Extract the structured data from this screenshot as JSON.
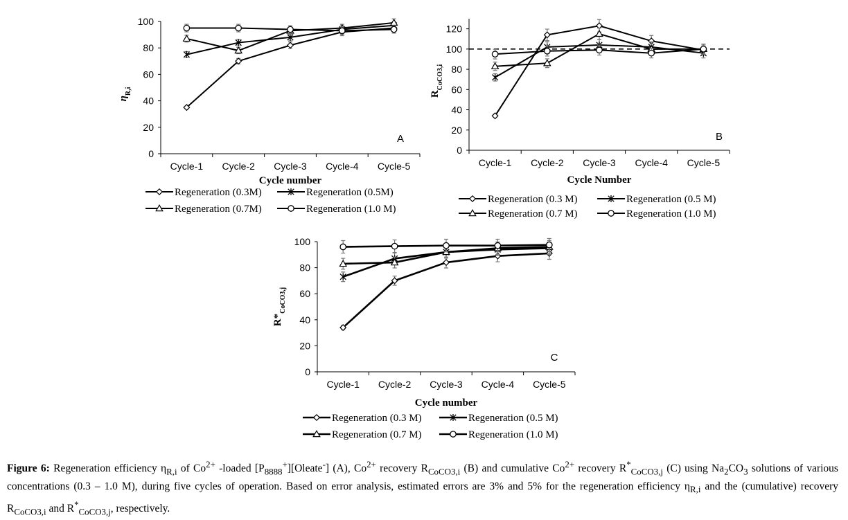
{
  "chart_data": [
    {
      "id": "A",
      "type": "line",
      "panel_label": "A",
      "title": "",
      "xlabel": "Cycle number",
      "ylabel": "η_R,i",
      "ylabel_main": "η",
      "ylabel_sub": "R,i",
      "categories": [
        "Cycle-1",
        "Cycle-2",
        "Cycle-3",
        "Cycle-4",
        "Cycle-5"
      ],
      "ylim": [
        0,
        100
      ],
      "yticks": [
        0,
        20,
        40,
        60,
        80,
        100
      ],
      "reference_line": null,
      "legend": [
        "Regeneration (0.3M)",
        "Regeneration (0.5M)",
        "Regeneration (0.7M)",
        "Regeneration (1.0 M)"
      ],
      "series": [
        {
          "name": "Regeneration (0.3M)",
          "marker": "diamond",
          "values": [
            35,
            70,
            82,
            92,
            95
          ]
        },
        {
          "name": "Regeneration (0.5M)",
          "marker": "star",
          "values": [
            75,
            84,
            88,
            94,
            97
          ]
        },
        {
          "name": "Regeneration (0.7M)",
          "marker": "triangle",
          "values": [
            87,
            78,
            93,
            95,
            99
          ]
        },
        {
          "name": "Regeneration (1.0 M)",
          "marker": "circle",
          "values": [
            95,
            95,
            94,
            93,
            94
          ]
        }
      ]
    },
    {
      "id": "B",
      "type": "line",
      "panel_label": "B",
      "title": "",
      "xlabel": "Cycle Number",
      "ylabel": "R_CoCO3,i",
      "ylabel_main": "R",
      "ylabel_sub": "CoCO3,i",
      "categories": [
        "Cycle-1",
        "Cycle-2",
        "Cycle-3",
        "Cycle-4",
        "Cycle-5"
      ],
      "ylim": [
        0,
        130
      ],
      "yticks": [
        0,
        20,
        40,
        60,
        80,
        100,
        120
      ],
      "reference_line": 100,
      "legend": [
        "Regeneration (0.3 M)",
        "Regeneration (0.5 M)",
        "Regeneration (0.7 M)",
        "Regeneration (1.0 M)"
      ],
      "series": [
        {
          "name": "Regeneration (0.3 M)",
          "marker": "diamond",
          "values": [
            34,
            114,
            123,
            108,
            99
          ]
        },
        {
          "name": "Regeneration (0.5 M)",
          "marker": "star",
          "values": [
            72,
            102,
            104,
            102,
            96
          ]
        },
        {
          "name": "Regeneration (0.7 M)",
          "marker": "triangle",
          "values": [
            83,
            86,
            115,
            100,
            100
          ]
        },
        {
          "name": "Regeneration (1.0 M)",
          "marker": "circle",
          "values": [
            95,
            98,
            99,
            96,
            100
          ]
        }
      ]
    },
    {
      "id": "C",
      "type": "line",
      "panel_label": "C",
      "title": "",
      "xlabel": "Cycle number",
      "ylabel": "R*_CoCO3,j",
      "ylabel_main": "R*",
      "ylabel_sub": "CoCO3,j",
      "categories": [
        "Cycle-1",
        "Cycle-2",
        "Cycle-3",
        "Cycle-4",
        "Cycle-5"
      ],
      "ylim": [
        0,
        100
      ],
      "yticks": [
        0,
        20,
        40,
        60,
        80,
        100
      ],
      "reference_line": null,
      "legend": [
        "Regeneration (0.3 M)",
        "Regeneration (0.5 M)",
        "Regeneration (0.7 M)",
        "Regeneration (1.0 M)"
      ],
      "series": [
        {
          "name": "Regeneration (0.3 M)",
          "marker": "diamond",
          "values": [
            34,
            70,
            84,
            89,
            91
          ]
        },
        {
          "name": "Regeneration (0.5 M)",
          "marker": "star",
          "values": [
            73,
            87,
            92,
            94,
            95
          ]
        },
        {
          "name": "Regeneration (0.7 M)",
          "marker": "triangle",
          "values": [
            83,
            84,
            92,
            95,
            96
          ]
        },
        {
          "name": "Regeneration (1.0 M)",
          "marker": "circle",
          "values": [
            96,
            96.5,
            97,
            97,
            97.5
          ]
        }
      ]
    }
  ],
  "caption": {
    "label": "Figure 6:",
    "t1": " Regeneration efficiency η",
    "s1": "R,i",
    "t2": " of Co",
    "p1": "2+",
    "t3": " -loaded [P",
    "s2": "8888",
    "p2": "+",
    "t4": "][Oleate",
    "p3": "-",
    "t5": "] (A), Co",
    "p4": "2+",
    "t6": " recovery R",
    "s3": "CoCO3,i",
    "t7": " (B) and cumulative Co",
    "p5": "2+",
    "t8": " recovery R",
    "p6": "*",
    "s4": "CoCO3,j",
    "t9": " (C) using Na",
    "s5": "2",
    "t10": "CO",
    "s6": "3",
    "t11": " solutions of various concentrations (0.3 – 1.0 M), during five cycles of operation. Based on error analysis, estimated errors are 3% and 5% for the regeneration efficiency η",
    "s7": "R,i",
    "t12": " and the (cumulative) recovery R",
    "s8": "CoCO3,i",
    "t13": " and R",
    "p7": "*",
    "s9": "CoCO3,j",
    "t14": ", respectively."
  }
}
